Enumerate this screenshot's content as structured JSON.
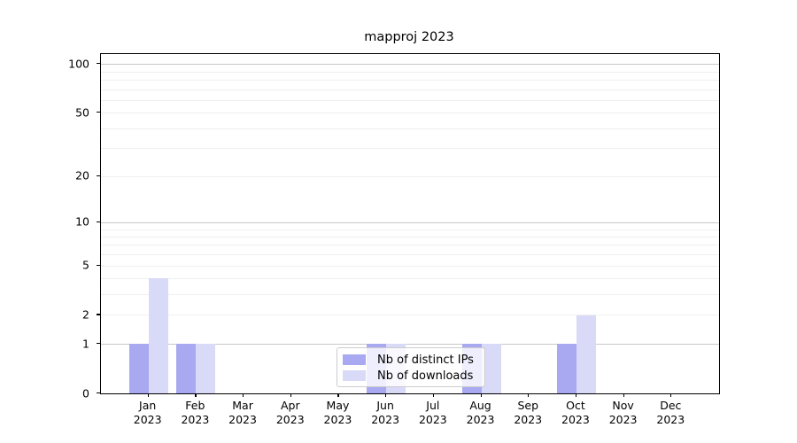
{
  "chart_data": {
    "type": "bar",
    "title": "mapproj 2023",
    "categories": [
      "Jan 2023",
      "Feb 2023",
      "Mar 2023",
      "Apr 2023",
      "May 2023",
      "Jun 2023",
      "Jul 2023",
      "Aug 2023",
      "Sep 2023",
      "Oct 2023",
      "Nov 2023",
      "Dec 2023"
    ],
    "x_months": [
      "Jan",
      "Feb",
      "Mar",
      "Apr",
      "May",
      "Jun",
      "Jul",
      "Aug",
      "Sep",
      "Oct",
      "Nov",
      "Dec"
    ],
    "x_year": "2023",
    "series": [
      {
        "name": "Nb of distinct IPs",
        "color": "#a9a9f2",
        "values": [
          1,
          1,
          0,
          0,
          0,
          1,
          0,
          1,
          0,
          1,
          0,
          0
        ]
      },
      {
        "name": "Nb of downloads",
        "color": "#d9d9f8",
        "values": [
          4,
          1,
          0,
          0,
          0,
          1,
          0,
          1,
          0,
          2,
          0,
          0
        ]
      }
    ],
    "yscale": "log10(1+v)",
    "ylim": [
      0,
      115
    ],
    "yticks": [
      0,
      1,
      2,
      5,
      10,
      20,
      50,
      100
    ],
    "ytick_labels": [
      "0",
      "1",
      "2",
      "5",
      "10",
      "20",
      "50",
      "100"
    ],
    "grid": true,
    "grid_major_values": [
      1,
      10,
      100
    ],
    "grid_minor_values": [
      2,
      3,
      4,
      5,
      6,
      7,
      8,
      9,
      20,
      30,
      40,
      50,
      60,
      70,
      80,
      90
    ],
    "legend_position": "lower-center"
  },
  "style": {
    "background": "#ffffff",
    "spine_color": "#000000",
    "grid_major_color": "#c8c8c8",
    "grid_minor_color": "#efefef",
    "legend_border_color": "#cccccc",
    "text_color": "#000000"
  }
}
